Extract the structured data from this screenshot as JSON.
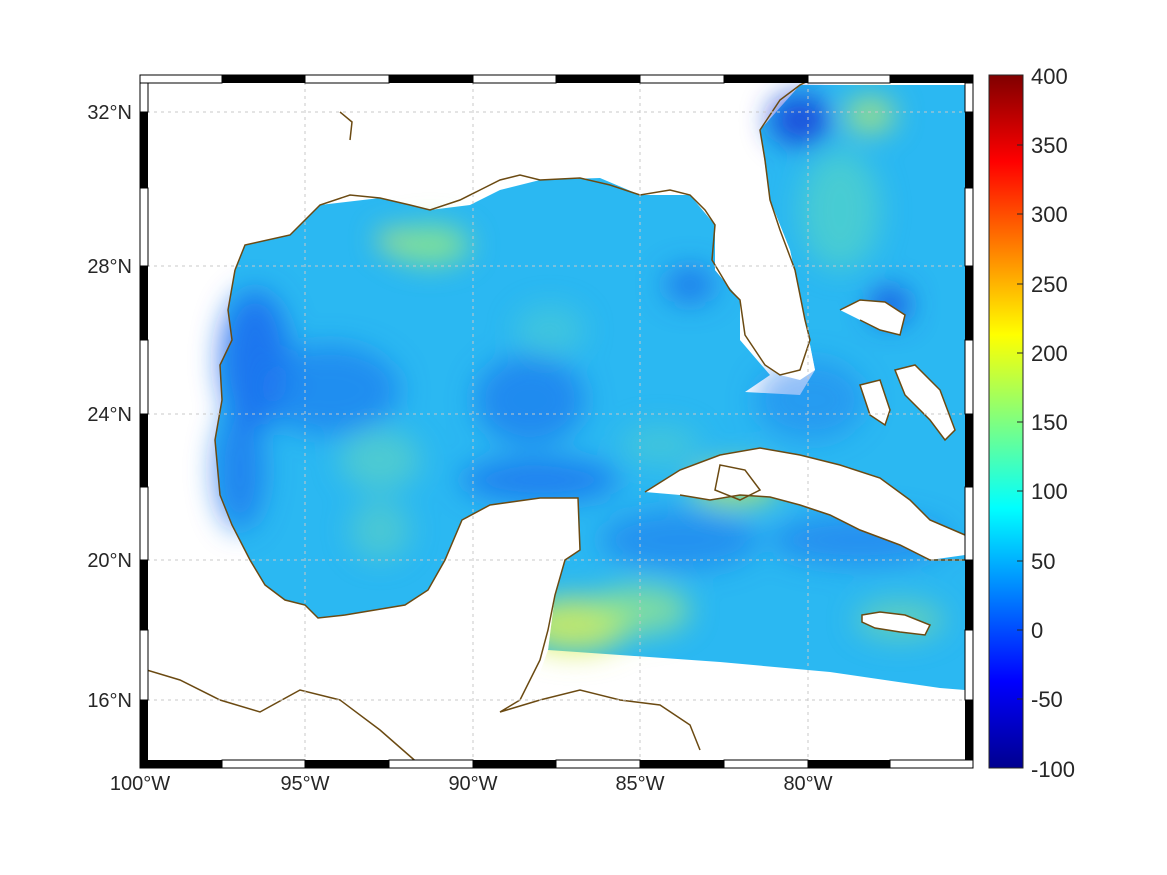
{
  "map": {
    "region": "Gulf of Mexico and western Caribbean",
    "lon_range": [
      -100,
      -75
    ],
    "lat_range": [
      14.2,
      33
    ],
    "lon_tick_labels": [
      "100°W",
      "95°W",
      "90°W",
      "85°W",
      "80°W"
    ],
    "lat_tick_labels": [
      "32°N",
      "28°N",
      "24°N",
      "20°N",
      "16°N"
    ],
    "grid": true,
    "field_colormap": "jet",
    "land_color": "#ffffff",
    "coastline_color": "#6b4a12"
  },
  "colorbar": {
    "ticks": [
      "400",
      "350",
      "300",
      "250",
      "200",
      "150",
      "100",
      "50",
      "0",
      "-50",
      "-100"
    ],
    "min": -100,
    "max": 400,
    "position": "right"
  }
}
